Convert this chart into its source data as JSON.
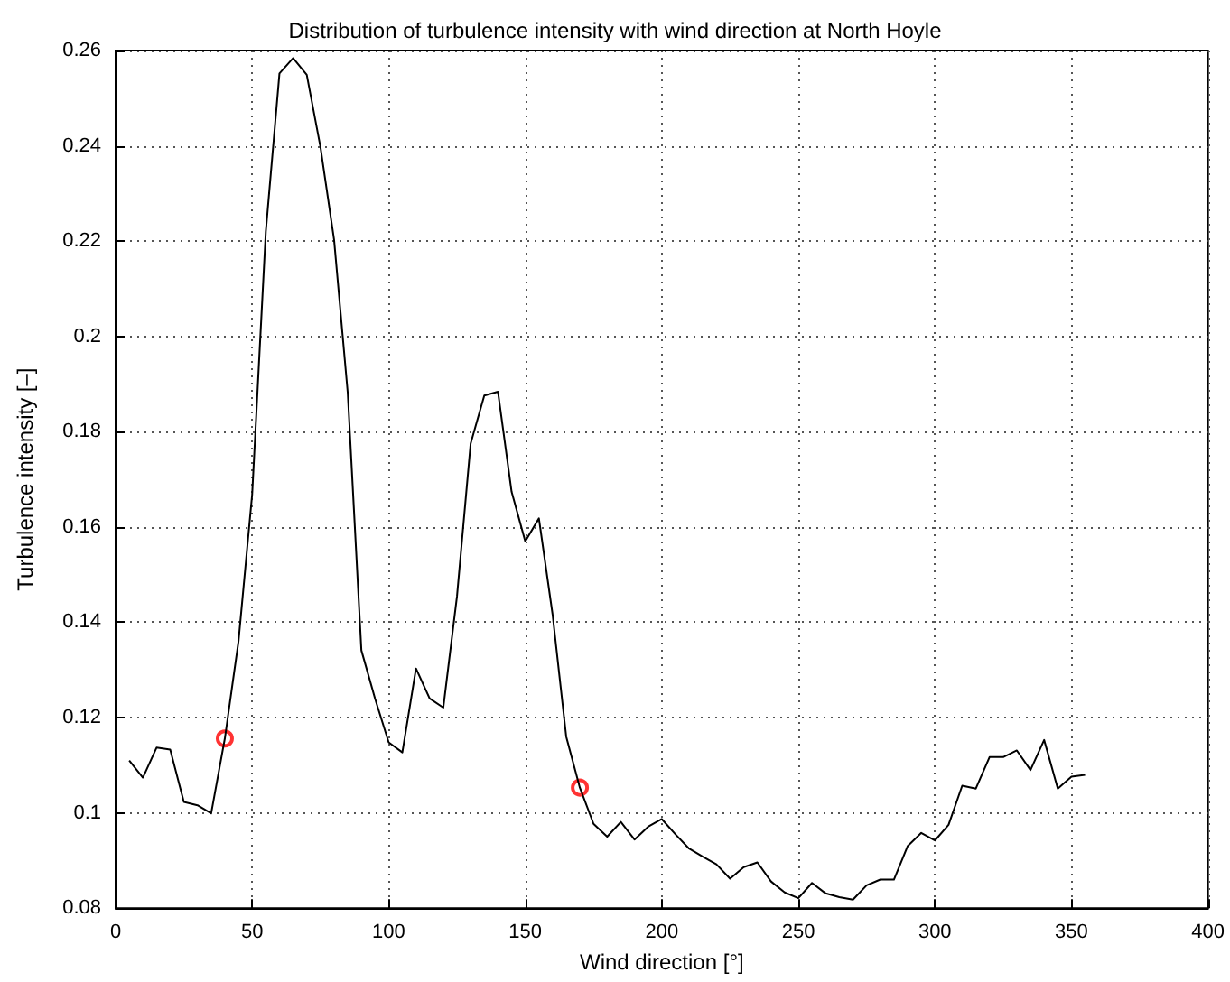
{
  "chart_data": {
    "type": "line",
    "title": "Distribution of turbulence intensity with wind direction at North Hoyle",
    "xlabel": "Wind direction [°]",
    "ylabel": "Turbulence intensity [–]",
    "xlim": [
      0,
      400
    ],
    "xticks": [
      0,
      50,
      100,
      150,
      200,
      250,
      300,
      350,
      400
    ],
    "ylim": [
      0.08,
      0.26
    ],
    "yticks": [
      0.08,
      0.1,
      0.12,
      0.14,
      0.16,
      0.18,
      0.2,
      0.22,
      0.24,
      0.26
    ],
    "grid": true,
    "series": [
      {
        "color": "#000000",
        "marker": "none",
        "line_style": "solid",
        "x": [
          5,
          10,
          15,
          20,
          25,
          30,
          35,
          40,
          45,
          50,
          55,
          60,
          65,
          70,
          75,
          80,
          85,
          90,
          95,
          100,
          105,
          110,
          115,
          120,
          125,
          130,
          135,
          140,
          145,
          150,
          155,
          160,
          165,
          170,
          175,
          180,
          185,
          190,
          195,
          200,
          205,
          210,
          215,
          220,
          225,
          230,
          235,
          240,
          245,
          250,
          255,
          260,
          265,
          270,
          275,
          280,
          285,
          290,
          295,
          300,
          305,
          310,
          315,
          320,
          325,
          330,
          335,
          340,
          345,
          350,
          355
        ],
        "values": [
          0.111,
          0.1074,
          0.1137,
          0.1133,
          0.1023,
          0.1016,
          0.0999,
          0.1156,
          0.136,
          0.1668,
          0.222,
          0.2552,
          0.2584,
          0.2549,
          0.2398,
          0.2203,
          0.1882,
          0.1341,
          0.124,
          0.1148,
          0.1127,
          0.1303,
          0.124,
          0.1221,
          0.1454,
          0.1775,
          0.1876,
          0.1884,
          0.1674,
          0.157,
          0.1618,
          0.1417,
          0.116,
          0.1053,
          0.0977,
          0.095,
          0.0981,
          0.0944,
          0.0971,
          0.0987,
          0.0955,
          0.0925,
          0.0908,
          0.0892,
          0.0862,
          0.0886,
          0.0896,
          0.0856,
          0.0833,
          0.0821,
          0.0853,
          0.0831,
          0.0823,
          0.0818,
          0.0848,
          0.086,
          0.086,
          0.093,
          0.0958,
          0.0942,
          0.0975,
          0.1057,
          0.1051,
          0.1117,
          0.1117,
          0.1131,
          0.109,
          0.1153,
          0.1051,
          0.1076,
          0.108
        ]
      },
      {
        "type": "scatter",
        "color": "#ff0000",
        "marker": "circle",
        "x": [
          40,
          170
        ],
        "values": [
          0.1156,
          0.1053
        ]
      }
    ]
  }
}
